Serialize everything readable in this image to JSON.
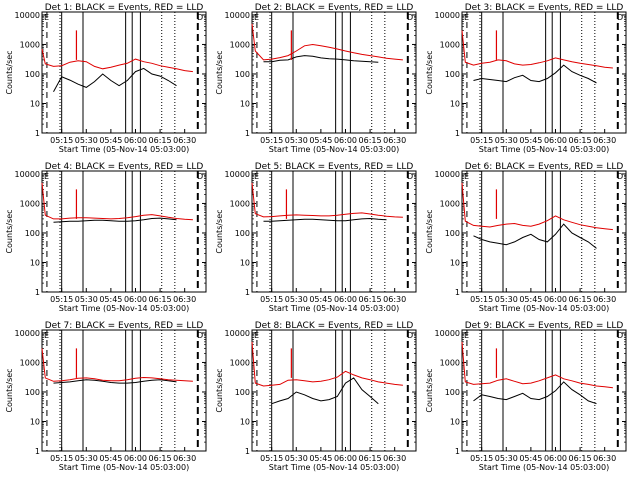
{
  "chart_data": [
    {
      "type": "line",
      "title": "Det 1: BLACK = Events, RED = LLD",
      "ylabel": "Counts/sec",
      "xlabel": "Start Time (05-Nov-14 05:03:00)",
      "profile": "A",
      "markers": [
        "E",
        "D"
      ],
      "series": [
        {
          "name": "Events",
          "color": "#000000",
          "x": [
            "05:05",
            "05:10",
            "05:15",
            "05:20",
            "05:25",
            "05:30",
            "05:35",
            "05:40",
            "05:45",
            "05:50",
            "05:55",
            "06:00",
            "06:05",
            "06:10",
            "06:15",
            "06:20",
            "06:25"
          ],
          "y": [
            null,
            25,
            80,
            62,
            45,
            35,
            55,
            100,
            60,
            40,
            60,
            120,
            155,
            100,
            85,
            60,
            40
          ]
        },
        {
          "name": "LLD",
          "color": "#e00000",
          "x": [
            "05:03",
            "05:05",
            "05:10",
            "05:15",
            "05:20",
            "05:25",
            "05:30",
            "05:35",
            "05:40",
            "05:45",
            "05:50",
            "05:55",
            "06:00",
            "06:05",
            "06:10",
            "06:15",
            "06:20",
            "06:25",
            "06:30",
            "06:35"
          ],
          "y": [
            700,
            220,
            180,
            190,
            250,
            280,
            260,
            180,
            150,
            170,
            200,
            230,
            320,
            260,
            230,
            190,
            170,
            150,
            130,
            120
          ]
        }
      ]
    },
    {
      "type": "line",
      "title": "Det 2: BLACK = Events, RED = LLD",
      "ylabel": "Counts/sec",
      "xlabel": "Start Time (05-Nov-14 05:03:00)",
      "profile": "B",
      "markers": [
        "E",
        "D"
      ],
      "series": [
        {
          "name": "Events",
          "color": "#000000",
          "x": [
            "05:10",
            "05:15",
            "05:20",
            "05:25",
            "05:30",
            "05:35",
            "05:40",
            "05:45",
            "05:50",
            "05:55",
            "06:00",
            "06:05",
            "06:10",
            "06:15",
            "06:20"
          ],
          "y": [
            260,
            260,
            290,
            300,
            380,
            420,
            400,
            350,
            330,
            320,
            300,
            280,
            270,
            260,
            250
          ]
        },
        {
          "name": "LLD",
          "color": "#e00000",
          "x": [
            "05:03",
            "05:05",
            "05:10",
            "05:15",
            "05:20",
            "05:25",
            "05:30",
            "05:35",
            "05:40",
            "05:45",
            "05:50",
            "05:55",
            "06:00",
            "06:05",
            "06:10",
            "06:15",
            "06:20",
            "06:25",
            "06:30",
            "06:35"
          ],
          "y": [
            5000,
            600,
            300,
            320,
            360,
            420,
            600,
            900,
            1000,
            900,
            800,
            700,
            600,
            520,
            460,
            420,
            380,
            340,
            320,
            300
          ]
        }
      ]
    },
    {
      "type": "line",
      "title": "Det 3: BLACK = Events, RED = LLD",
      "ylabel": "Counts/sec",
      "xlabel": "Start Time (05-Nov-14 05:03:00)",
      "profile": "A",
      "markers": [
        "E",
        "D"
      ],
      "series": [
        {
          "name": "Events",
          "color": "#000000",
          "x": [
            "05:10",
            "05:15",
            "05:20",
            "05:25",
            "05:30",
            "05:35",
            "05:40",
            "05:45",
            "05:50",
            "05:55",
            "06:00",
            "06:05",
            "06:10",
            "06:15",
            "06:20",
            "06:25"
          ],
          "y": [
            60,
            70,
            65,
            60,
            55,
            75,
            90,
            60,
            55,
            70,
            110,
            200,
            120,
            90,
            70,
            50
          ]
        },
        {
          "name": "LLD",
          "color": "#e00000",
          "x": [
            "05:03",
            "05:05",
            "05:10",
            "05:15",
            "05:20",
            "05:25",
            "05:30",
            "05:35",
            "05:40",
            "05:45",
            "05:50",
            "05:55",
            "06:00",
            "06:05",
            "06:10",
            "06:15",
            "06:20",
            "06:25",
            "06:30",
            "06:35"
          ],
          "y": [
            3000,
            250,
            200,
            230,
            250,
            300,
            280,
            220,
            200,
            210,
            240,
            280,
            350,
            300,
            260,
            230,
            210,
            190,
            170,
            160
          ]
        }
      ]
    },
    {
      "type": "line",
      "title": "Det 4: BLACK = Events, RED = LLD",
      "ylabel": "Counts/sec",
      "xlabel": "Start Time (05-Nov-14 05:03:00)",
      "profile": "C",
      "markers": [
        "E",
        "D"
      ],
      "series": [
        {
          "name": "Events",
          "color": "#000000",
          "x": [
            "05:10",
            "05:15",
            "05:20",
            "05:25",
            "05:30",
            "05:35",
            "05:40",
            "05:45",
            "05:50",
            "05:55",
            "06:00",
            "06:05",
            "06:10",
            "06:15",
            "06:20",
            "06:25"
          ],
          "y": [
            230,
            240,
            250,
            250,
            260,
            270,
            270,
            260,
            250,
            250,
            260,
            280,
            310,
            320,
            300,
            280
          ]
        },
        {
          "name": "LLD",
          "color": "#e00000",
          "x": [
            "05:03",
            "05:05",
            "05:10",
            "05:15",
            "05:20",
            "05:25",
            "05:30",
            "05:35",
            "05:40",
            "05:45",
            "05:50",
            "05:55",
            "06:00",
            "06:05",
            "06:10",
            "06:15",
            "06:20",
            "06:25",
            "06:30",
            "06:35"
          ],
          "y": [
            5000,
            400,
            300,
            300,
            320,
            330,
            330,
            320,
            310,
            300,
            310,
            330,
            360,
            400,
            420,
            380,
            340,
            310,
            290,
            280
          ]
        }
      ]
    },
    {
      "type": "line",
      "title": "Det 5: BLACK = Events, RED = LLD",
      "ylabel": "Counts/sec",
      "xlabel": "Start Time (05-Nov-14 05:03:00)",
      "profile": "C",
      "markers": [
        "E",
        "D"
      ],
      "series": [
        {
          "name": "Events",
          "color": "#000000",
          "x": [
            "05:10",
            "05:15",
            "05:20",
            "05:25",
            "05:30",
            "05:35",
            "05:40",
            "05:45",
            "05:50",
            "05:55",
            "06:00",
            "06:05",
            "06:10",
            "06:15",
            "06:20",
            "06:25"
          ],
          "y": [
            250,
            250,
            260,
            270,
            280,
            290,
            290,
            280,
            270,
            260,
            260,
            280,
            300,
            310,
            290,
            280
          ]
        },
        {
          "name": "LLD",
          "color": "#e00000",
          "x": [
            "05:03",
            "05:05",
            "05:10",
            "05:15",
            "05:20",
            "05:25",
            "05:30",
            "05:35",
            "05:40",
            "05:45",
            "05:50",
            "05:55",
            "06:00",
            "06:05",
            "06:10",
            "06:15",
            "06:20",
            "06:25",
            "06:30",
            "06:35"
          ],
          "y": [
            5000,
            450,
            350,
            360,
            380,
            400,
            410,
            400,
            390,
            380,
            380,
            400,
            430,
            460,
            480,
            440,
            400,
            370,
            350,
            340
          ]
        }
      ]
    },
    {
      "type": "line",
      "title": "Det 6: BLACK = Events, RED = LLD",
      "ylabel": "Counts/sec",
      "xlabel": "Start Time (05-Nov-14 05:03:00)",
      "profile": "A",
      "markers": [
        "E",
        "D"
      ],
      "series": [
        {
          "name": "Events",
          "color": "#000000",
          "x": [
            "05:10",
            "05:15",
            "05:20",
            "05:25",
            "05:30",
            "05:35",
            "05:40",
            "05:45",
            "05:50",
            "05:55",
            "06:00",
            "06:05",
            "06:10",
            "06:15",
            "06:20",
            "06:25"
          ],
          "y": [
            80,
            60,
            50,
            45,
            40,
            50,
            70,
            90,
            60,
            50,
            90,
            200,
            100,
            70,
            50,
            30
          ]
        },
        {
          "name": "LLD",
          "color": "#e00000",
          "x": [
            "05:03",
            "05:05",
            "05:10",
            "05:15",
            "05:20",
            "05:25",
            "05:30",
            "05:35",
            "05:40",
            "05:45",
            "05:50",
            "05:55",
            "06:00",
            "06:05",
            "06:10",
            "06:15",
            "06:20",
            "06:25",
            "06:30",
            "06:35"
          ],
          "y": [
            5000,
            250,
            180,
            170,
            160,
            180,
            200,
            210,
            180,
            170,
            200,
            260,
            380,
            280,
            230,
            190,
            170,
            150,
            140,
            130
          ]
        }
      ]
    },
    {
      "type": "line",
      "title": "Det 7: BLACK = Events, RED = LLD",
      "ylabel": "Counts/sec",
      "xlabel": "Start Time (05-Nov-14 05:03:00)",
      "profile": "D",
      "markers": [
        "E",
        "D"
      ],
      "series": [
        {
          "name": "Events",
          "color": "#000000",
          "x": [
            "05:10",
            "05:15",
            "05:20",
            "05:25",
            "05:30",
            "05:35",
            "05:40",
            "05:45",
            "05:50",
            "05:55",
            "06:00",
            "06:05",
            "06:10",
            "06:15",
            "06:20",
            "06:25"
          ],
          "y": [
            200,
            210,
            220,
            240,
            260,
            250,
            230,
            210,
            200,
            200,
            210,
            230,
            250,
            260,
            240,
            220
          ]
        },
        {
          "name": "LLD",
          "color": "#e00000",
          "x": [
            "05:03",
            "05:05",
            "05:10",
            "05:15",
            "05:20",
            "05:25",
            "05:30",
            "05:35",
            "05:40",
            "05:45",
            "05:50",
            "05:55",
            "06:00",
            "06:05",
            "06:10",
            "06:15",
            "06:20",
            "06:25",
            "06:30",
            "06:35"
          ],
          "y": [
            3000,
            300,
            230,
            240,
            260,
            290,
            300,
            280,
            250,
            240,
            240,
            260,
            290,
            310,
            300,
            280,
            260,
            250,
            240,
            230
          ]
        }
      ]
    },
    {
      "type": "line",
      "title": "Det 8: BLACK = Events, RED = LLD",
      "ylabel": "Counts/sec",
      "xlabel": "Start Time (05-Nov-14 05:03:00)",
      "profile": "B2",
      "markers": [
        "E",
        "D"
      ],
      "series": [
        {
          "name": "Events",
          "color": "#000000",
          "x": [
            "05:15",
            "05:20",
            "05:25",
            "05:30",
            "05:35",
            "05:40",
            "05:45",
            "05:50",
            "05:55",
            "06:00",
            "06:05",
            "06:10",
            "06:15",
            "06:20"
          ],
          "y": [
            40,
            50,
            60,
            100,
            80,
            60,
            50,
            55,
            70,
            200,
            300,
            120,
            70,
            40
          ]
        },
        {
          "name": "LLD",
          "color": "#e00000",
          "x": [
            "05:03",
            "05:05",
            "05:10",
            "05:15",
            "05:20",
            "05:25",
            "05:30",
            "05:35",
            "05:40",
            "05:45",
            "05:50",
            "05:55",
            "06:00",
            "06:05",
            "06:10",
            "06:15",
            "06:20",
            "06:25",
            "06:30",
            "06:35"
          ],
          "y": [
            5000,
            200,
            160,
            170,
            180,
            250,
            260,
            240,
            220,
            230,
            260,
            320,
            500,
            380,
            300,
            260,
            220,
            200,
            180,
            170
          ]
        }
      ]
    },
    {
      "type": "line",
      "title": "Det 9: BLACK = Events, RED = LLD",
      "ylabel": "Counts/sec",
      "xlabel": "Start Time (05-Nov-14 05:03:00)",
      "profile": "A",
      "markers": [
        "E",
        "D"
      ],
      "series": [
        {
          "name": "Events",
          "color": "#000000",
          "x": [
            "05:10",
            "05:15",
            "05:20",
            "05:25",
            "05:30",
            "05:35",
            "05:40",
            "05:45",
            "05:50",
            "05:55",
            "06:00",
            "06:05",
            "06:10",
            "06:15",
            "06:20",
            "06:25"
          ],
          "y": [
            50,
            80,
            70,
            60,
            55,
            70,
            90,
            60,
            55,
            70,
            110,
            220,
            120,
            80,
            50,
            40
          ]
        },
        {
          "name": "LLD",
          "color": "#e00000",
          "x": [
            "05:03",
            "05:05",
            "05:10",
            "05:15",
            "05:20",
            "05:25",
            "05:30",
            "05:35",
            "05:40",
            "05:45",
            "05:50",
            "05:55",
            "06:00",
            "06:05",
            "06:10",
            "06:15",
            "06:20",
            "06:25",
            "06:30",
            "06:35"
          ],
          "y": [
            5000,
            220,
            180,
            190,
            200,
            250,
            280,
            230,
            190,
            200,
            240,
            300,
            380,
            280,
            240,
            200,
            180,
            160,
            150,
            140
          ]
        }
      ]
    }
  ],
  "axes": {
    "yticks": [
      "1",
      "10",
      "100",
      "1000",
      "10000"
    ],
    "xticks": [
      "05:15",
      "05:30",
      "05:45",
      "06:00",
      "06:15",
      "06:30"
    ]
  }
}
